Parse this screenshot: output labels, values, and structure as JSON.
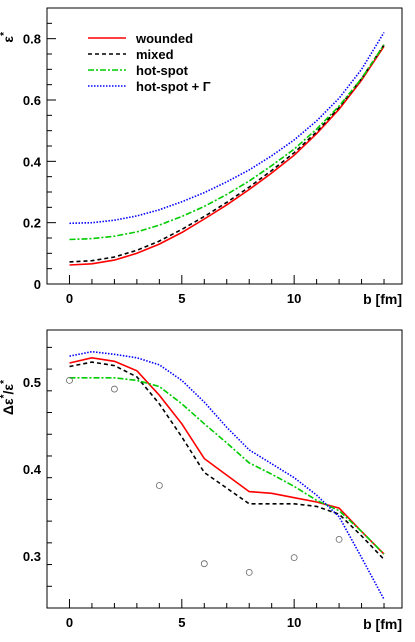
{
  "chart_data": [
    {
      "type": "line",
      "xlabel": "b [fm]",
      "ylabel_parts": {
        "base": "ε",
        "sup": "*"
      },
      "xlim": [
        -1,
        14.8
      ],
      "ylim": [
        0,
        0.9
      ],
      "xticks": [
        0,
        5,
        10
      ],
      "xtick_labels": [
        "0",
        "5",
        "10"
      ],
      "yticks": [
        0,
        0.2,
        0.4,
        0.6,
        0.8
      ],
      "ytick_labels": [
        "0",
        "0.2",
        "0.4",
        "0.6",
        "0.8"
      ],
      "legend_placement": "top-left",
      "series": [
        {
          "name": "wounded",
          "color": "#ff0000",
          "dash": "solid",
          "x": [
            0,
            1,
            2,
            3,
            4,
            5,
            6,
            7,
            8,
            9,
            10,
            11,
            12,
            13,
            14
          ],
          "y": [
            0.062,
            0.066,
            0.078,
            0.1,
            0.13,
            0.168,
            0.212,
            0.258,
            0.308,
            0.362,
            0.42,
            0.49,
            0.57,
            0.665,
            0.775
          ]
        },
        {
          "name": "mixed",
          "color": "#000000",
          "dash": "4,3",
          "x": [
            0,
            1,
            2,
            3,
            4,
            5,
            6,
            7,
            8,
            9,
            10,
            11,
            12,
            13,
            14
          ],
          "y": [
            0.072,
            0.076,
            0.088,
            0.11,
            0.14,
            0.178,
            0.22,
            0.266,
            0.316,
            0.37,
            0.428,
            0.496,
            0.576,
            0.67,
            0.78
          ]
        },
        {
          "name": "hot-spot",
          "color": "#00cc00",
          "dash": "6,2,2,2",
          "x": [
            0,
            1,
            2,
            3,
            4,
            5,
            6,
            7,
            8,
            9,
            10,
            11,
            12,
            13,
            14
          ],
          "y": [
            0.145,
            0.148,
            0.156,
            0.17,
            0.192,
            0.22,
            0.253,
            0.292,
            0.336,
            0.386,
            0.44,
            0.505,
            0.58,
            0.67,
            0.78
          ]
        },
        {
          "name": "hot-spot + Γ",
          "color": "#0000ff",
          "dash": "1.5,1.5",
          "x": [
            0,
            1,
            2,
            3,
            4,
            5,
            6,
            7,
            8,
            9,
            10,
            11,
            12,
            13,
            14
          ],
          "y": [
            0.198,
            0.2,
            0.208,
            0.222,
            0.242,
            0.268,
            0.298,
            0.333,
            0.372,
            0.418,
            0.47,
            0.532,
            0.606,
            0.7,
            0.82
          ]
        }
      ]
    },
    {
      "type": "line",
      "xlabel": "b [fm]",
      "ylabel_parts": {
        "base": "Δε",
        "sup": "*",
        "mid": "/ε",
        "sup2": "*"
      },
      "xlim": [
        -1,
        14.8
      ],
      "ylim": [
        0.24,
        0.56
      ],
      "xticks": [
        0,
        5,
        10
      ],
      "xtick_labels": [
        "0",
        "5",
        "10"
      ],
      "yticks": [
        0.3,
        0.4,
        0.5
      ],
      "ytick_labels": [
        "0.3",
        "0.4",
        "0.5"
      ],
      "series": [
        {
          "color": "#ff0000",
          "dash": "solid",
          "x": [
            0,
            1,
            2,
            3,
            4,
            5,
            6,
            7,
            8,
            9,
            10,
            11,
            12,
            13,
            14
          ],
          "y": [
            0.522,
            0.528,
            0.524,
            0.513,
            0.485,
            0.452,
            0.412,
            0.393,
            0.374,
            0.372,
            0.367,
            0.362,
            0.355,
            0.328,
            0.302
          ]
        },
        {
          "color": "#000000",
          "dash": "4,3",
          "x": [
            0,
            1,
            2,
            3,
            4,
            5,
            6,
            7,
            8,
            9,
            10,
            11,
            12,
            13,
            14
          ],
          "y": [
            0.518,
            0.523,
            0.519,
            0.506,
            0.475,
            0.437,
            0.396,
            0.378,
            0.36,
            0.36,
            0.36,
            0.357,
            0.348,
            0.323,
            0.296
          ]
        },
        {
          "color": "#00cc00",
          "dash": "6,2,2,2",
          "x": [
            0,
            1,
            2,
            3,
            4,
            5,
            6,
            7,
            8,
            9,
            10,
            11,
            12,
            13,
            14
          ],
          "y": [
            0.505,
            0.505,
            0.505,
            0.502,
            0.495,
            0.475,
            0.452,
            0.43,
            0.407,
            0.394,
            0.38,
            0.364,
            0.352,
            0.328,
            0.302
          ]
        },
        {
          "color": "#0000ff",
          "dash": "1.5,1.5",
          "x": [
            0,
            1,
            2,
            3,
            4,
            5,
            6,
            7,
            8,
            9,
            10,
            11,
            12,
            13,
            14
          ],
          "y": [
            0.53,
            0.535,
            0.532,
            0.528,
            0.52,
            0.502,
            0.477,
            0.448,
            0.422,
            0.406,
            0.39,
            0.37,
            0.345,
            0.298,
            0.25
          ]
        }
      ],
      "points": {
        "color": "#666666",
        "x": [
          0,
          2,
          4,
          6,
          8,
          10,
          12
        ],
        "y": [
          0.502,
          0.492,
          0.381,
          0.291,
          0.281,
          0.298,
          0.319
        ]
      }
    }
  ]
}
